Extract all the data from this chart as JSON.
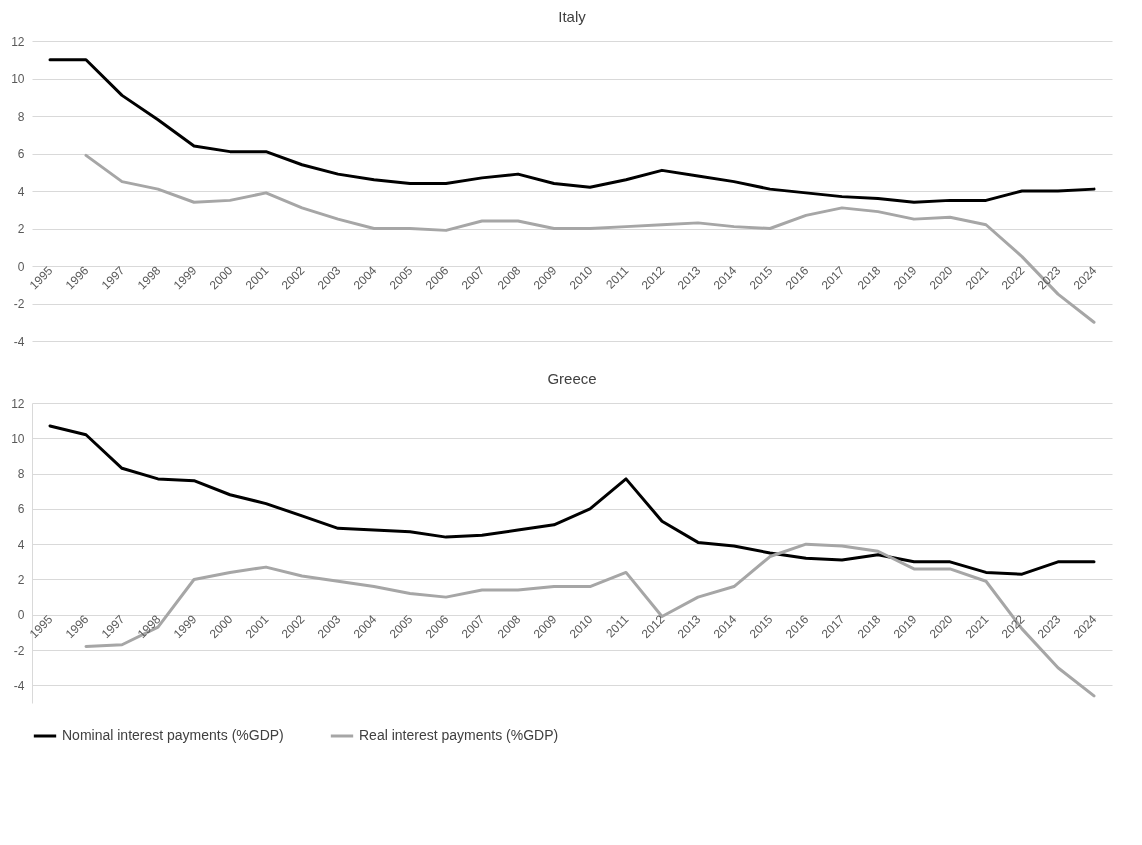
{
  "chart_data": [
    {
      "type": "line",
      "title": "Italy",
      "categories": [
        "1995",
        "1996",
        "1997",
        "1998",
        "1999",
        "2000",
        "2001",
        "2002",
        "2003",
        "2004",
        "2005",
        "2006",
        "2007",
        "2008",
        "2009",
        "2010",
        "2011",
        "2012",
        "2013",
        "2014",
        "2015",
        "2016",
        "2017",
        "2018",
        "2019",
        "2020",
        "2021",
        "2022",
        "2023",
        "2024"
      ],
      "series": [
        {
          "name": "Nominal interest payments (%GDP)",
          "color": "#000000",
          "values": [
            11.0,
            11.0,
            9.1,
            7.8,
            6.4,
            6.1,
            6.1,
            5.4,
            4.9,
            4.6,
            4.4,
            4.4,
            4.7,
            4.9,
            4.4,
            4.2,
            4.6,
            5.1,
            4.8,
            4.5,
            4.1,
            3.9,
            3.7,
            3.6,
            3.4,
            3.5,
            3.5,
            4.0,
            4.0,
            4.1
          ]
        },
        {
          "name": "Real interest payments (%GDP)",
          "color": "#a6a6a6",
          "values": [
            null,
            5.9,
            4.5,
            4.1,
            3.4,
            3.5,
            3.9,
            3.1,
            2.5,
            2.0,
            2.0,
            1.9,
            2.4,
            2.4,
            2.0,
            2.0,
            2.1,
            2.2,
            2.3,
            2.1,
            2.0,
            2.7,
            3.1,
            2.9,
            2.5,
            2.6,
            2.2,
            0.5,
            -1.5,
            -3.0
          ]
        }
      ],
      "ylim": [
        -4,
        12
      ],
      "yticks": [
        -4,
        -2,
        0,
        2,
        4,
        6,
        8,
        10,
        12
      ],
      "grid": "y",
      "legend": "bottom",
      "line_style": "solid"
    },
    {
      "type": "line",
      "title": "Greece",
      "categories": [
        "1995",
        "1996",
        "1997",
        "1998",
        "1999",
        "2000",
        "2001",
        "2002",
        "2003",
        "2004",
        "2005",
        "2006",
        "2007",
        "2008",
        "2009",
        "2010",
        "2011",
        "2012",
        "2013",
        "2014",
        "2015",
        "2016",
        "2017",
        "2018",
        "2019",
        "2020",
        "2021",
        "2022",
        "2023",
        "2024"
      ],
      "series": [
        {
          "name": "Nominal interest payments (%GDP)",
          "color": "#000000",
          "values": [
            10.7,
            10.2,
            8.3,
            7.7,
            7.6,
            6.8,
            6.3,
            5.6,
            4.9,
            4.8,
            4.7,
            4.4,
            4.5,
            4.8,
            5.1,
            6.0,
            7.7,
            5.3,
            4.1,
            3.9,
            3.5,
            3.2,
            3.1,
            3.4,
            3.0,
            3.0,
            2.4,
            2.3,
            3.0,
            3.0
          ]
        },
        {
          "name": "Real interest payments (%GDP)",
          "color": "#a6a6a6",
          "values": [
            null,
            -1.8,
            -1.7,
            -0.7,
            2.0,
            2.4,
            2.7,
            2.2,
            1.9,
            1.6,
            1.2,
            1.0,
            1.4,
            1.4,
            1.6,
            1.6,
            2.4,
            -0.1,
            1.0,
            1.6,
            3.3,
            4.0,
            3.9,
            3.6,
            2.6,
            2.6,
            1.9,
            -0.8,
            -3.0,
            -4.6
          ]
        }
      ],
      "ylim": [
        -5,
        12
      ],
      "yticks": [
        -4,
        -2,
        0,
        2,
        4,
        6,
        8,
        10,
        12
      ],
      "grid": "y",
      "legend": "bottom",
      "line_style": "solid"
    }
  ]
}
